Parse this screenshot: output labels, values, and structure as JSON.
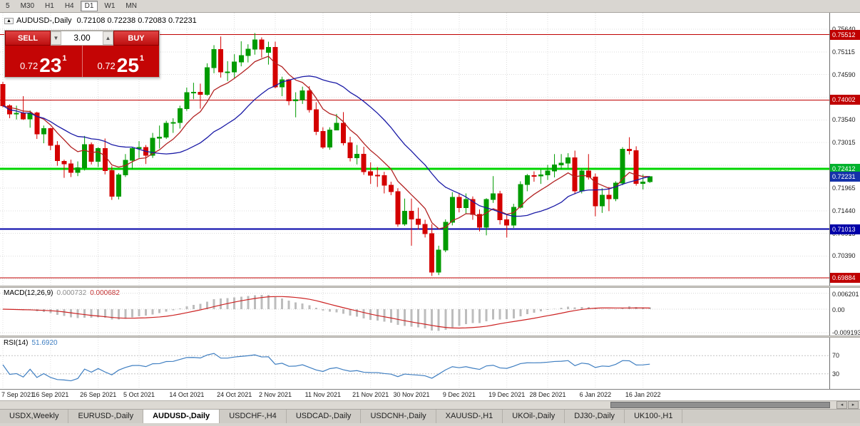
{
  "toolbar": {
    "timeframes": [
      "5",
      "M30",
      "H1",
      "H4",
      "D1",
      "W1",
      "MN"
    ],
    "active_timeframe": "D1"
  },
  "header": {
    "symbol": "AUDUSD-,Daily",
    "ohlc": "0.72108 0.72238 0.72083 0.72231"
  },
  "trade_panel": {
    "sell_label": "SELL",
    "buy_label": "BUY",
    "volume": "3.00",
    "sell_price": {
      "prefix": "0.72",
      "big": "23",
      "sup": "1"
    },
    "buy_price": {
      "prefix": "0.72",
      "big": "25",
      "sup": "1"
    }
  },
  "chart_data": {
    "type": "candlestick",
    "symbol": "AUDUSD-",
    "timeframe": "Daily",
    "up_color": "#009b00",
    "down_color": "#d40000",
    "ma_fast_color": "#b22222",
    "ma_fast_period": 8,
    "ma_slow_color": "#1a1aa6",
    "ma_slow_period": 20,
    "price_axis": {
      "visible_ticks": [
        0.7564,
        0.75115,
        0.7459,
        0.7354,
        0.73015,
        0.71965,
        0.7144,
        0.70915,
        0.7039
      ],
      "grid_only_ticks": [
        0.74065,
        0.7249,
        0.69865
      ]
    },
    "levels": [
      {
        "price": 0.75512,
        "label": "0.75512",
        "color": "#c00000",
        "line": true,
        "width": 1
      },
      {
        "price": 0.74002,
        "label": "0.74002",
        "color": "#c00000",
        "line": true,
        "width": 1
      },
      {
        "price": 0.72412,
        "label": "0.72412",
        "color": "#00b22d",
        "line_color": "#00d500",
        "line": true,
        "width": 3
      },
      {
        "price": 0.72231,
        "label": "0.72231",
        "color": "#1432aa",
        "line": false,
        "width": 0
      },
      {
        "price": 0.71013,
        "label": "0.71013",
        "color": "#0000a8",
        "line": true,
        "width": 2
      },
      {
        "price": 0.69884,
        "label": "0.69884",
        "color": "#c00000",
        "line": true,
        "width": 1
      }
    ],
    "date_ticks": [
      {
        "i": 0,
        "label": "7 Sep 2021"
      },
      {
        "i": 7,
        "label": "16 Sep 2021"
      },
      {
        "i": 14,
        "label": "26 Sep 2021"
      },
      {
        "i": 20,
        "label": "5 Oct 2021"
      },
      {
        "i": 27,
        "label": "14 Oct 2021"
      },
      {
        "i": 34,
        "label": "24 Oct 2021"
      },
      {
        "i": 40,
        "label": "2 Nov 2021"
      },
      {
        "i": 47,
        "label": "11 Nov 2021"
      },
      {
        "i": 54,
        "label": "21 Nov 2021"
      },
      {
        "i": 60,
        "label": "30 Nov 2021"
      },
      {
        "i": 67,
        "label": "9 Dec 2021"
      },
      {
        "i": 74,
        "label": "19 Dec 2021"
      },
      {
        "i": 80,
        "label": "28 Dec 2021"
      },
      {
        "i": 87,
        "label": "6 Jan 2022"
      },
      {
        "i": 94,
        "label": "16 Jan 2022"
      }
    ],
    "candles": [
      [
        0.7436,
        0.7442,
        0.7383,
        0.7387
      ],
      [
        0.7387,
        0.739,
        0.7358,
        0.7368
      ],
      [
        0.7368,
        0.7387,
        0.7355,
        0.7369
      ],
      [
        0.7369,
        0.7409,
        0.7354,
        0.7356
      ],
      [
        0.7356,
        0.7376,
        0.7336,
        0.737
      ],
      [
        0.737,
        0.7373,
        0.731,
        0.7322
      ],
      [
        0.7322,
        0.7341,
        0.73,
        0.7334
      ],
      [
        0.7334,
        0.7336,
        0.7284,
        0.7295
      ],
      [
        0.7295,
        0.7305,
        0.7248,
        0.726
      ],
      [
        0.7258,
        0.7262,
        0.722,
        0.7252
      ],
      [
        0.7252,
        0.7262,
        0.7222,
        0.7233
      ],
      [
        0.7233,
        0.7258,
        0.7224,
        0.7243
      ],
      [
        0.7243,
        0.7317,
        0.7237,
        0.7297
      ],
      [
        0.7297,
        0.7302,
        0.7251,
        0.7258
      ],
      [
        0.7258,
        0.7291,
        0.7245,
        0.7288
      ],
      [
        0.7288,
        0.7311,
        0.7228,
        0.7237
      ],
      [
        0.7237,
        0.7247,
        0.7169,
        0.7177
      ],
      [
        0.7177,
        0.7231,
        0.717,
        0.7227
      ],
      [
        0.7227,
        0.7275,
        0.7222,
        0.7261
      ],
      [
        0.7261,
        0.729,
        0.724,
        0.7288
      ],
      [
        0.7288,
        0.7305,
        0.7266,
        0.729
      ],
      [
        0.729,
        0.7296,
        0.7252,
        0.7272
      ],
      [
        0.7272,
        0.7324,
        0.7266,
        0.7312
      ],
      [
        0.7312,
        0.7341,
        0.7288,
        0.7314
      ],
      [
        0.7314,
        0.7352,
        0.731,
        0.7346
      ],
      [
        0.7346,
        0.7358,
        0.7324,
        0.7348
      ],
      [
        0.7348,
        0.7387,
        0.7334,
        0.738
      ],
      [
        0.738,
        0.7429,
        0.7375,
        0.7417
      ],
      [
        0.7417,
        0.744,
        0.7402,
        0.7418
      ],
      [
        0.7418,
        0.7438,
        0.738,
        0.7413
      ],
      [
        0.7413,
        0.7485,
        0.741,
        0.7475
      ],
      [
        0.7475,
        0.7527,
        0.7462,
        0.7517
      ],
      [
        0.7517,
        0.7547,
        0.7452,
        0.7465
      ],
      [
        0.7465,
        0.749,
        0.7444,
        0.7465
      ],
      [
        0.7465,
        0.7506,
        0.745,
        0.7488
      ],
      [
        0.7488,
        0.7536,
        0.7478,
        0.7503
      ],
      [
        0.7503,
        0.7529,
        0.7487,
        0.7518
      ],
      [
        0.7518,
        0.7555,
        0.7505,
        0.7539
      ],
      [
        0.7539,
        0.7545,
        0.7498,
        0.7518
      ],
      [
        0.751,
        0.7535,
        0.7482,
        0.7522
      ],
      [
        0.7522,
        0.7535,
        0.7427,
        0.743
      ],
      [
        0.743,
        0.7454,
        0.7409,
        0.7447
      ],
      [
        0.7447,
        0.7449,
        0.7388,
        0.7398
      ],
      [
        0.7398,
        0.7418,
        0.736,
        0.7401
      ],
      [
        0.7401,
        0.7431,
        0.7391,
        0.7421
      ],
      [
        0.7421,
        0.7432,
        0.7371,
        0.7378
      ],
      [
        0.7378,
        0.7395,
        0.7319,
        0.7327
      ],
      [
        0.7327,
        0.7337,
        0.7287,
        0.7291
      ],
      [
        0.7291,
        0.7337,
        0.7285,
        0.7331
      ],
      [
        0.7331,
        0.7368,
        0.733,
        0.7346
      ],
      [
        0.7346,
        0.7372,
        0.7295,
        0.7301
      ],
      [
        0.7301,
        0.7315,
        0.7258,
        0.7266
      ],
      [
        0.7266,
        0.7296,
        0.7251,
        0.7275
      ],
      [
        0.7275,
        0.7292,
        0.7227,
        0.7234
      ],
      [
        0.7234,
        0.7256,
        0.7206,
        0.7226
      ],
      [
        0.7226,
        0.7245,
        0.7199,
        0.7225
      ],
      [
        0.7225,
        0.7234,
        0.7184,
        0.7203
      ],
      [
        0.7203,
        0.7211,
        0.718,
        0.7188
      ],
      [
        0.7188,
        0.7196,
        0.7107,
        0.7113
      ],
      [
        0.7113,
        0.7172,
        0.7109,
        0.7143
      ],
      [
        0.7143,
        0.7172,
        0.7063,
        0.7125
      ],
      [
        0.7125,
        0.7151,
        0.71,
        0.7112
      ],
      [
        0.7112,
        0.7123,
        0.7082,
        0.7091
      ],
      [
        0.7091,
        0.7113,
        0.6993,
        0.7002
      ],
      [
        0.7002,
        0.7063,
        0.6995,
        0.7053
      ],
      [
        0.7053,
        0.7124,
        0.7048,
        0.7117
      ],
      [
        0.7117,
        0.7187,
        0.711,
        0.7175
      ],
      [
        0.7175,
        0.7185,
        0.714,
        0.7151
      ],
      [
        0.7151,
        0.7184,
        0.7137,
        0.717
      ],
      [
        0.717,
        0.7177,
        0.7123,
        0.7135
      ],
      [
        0.7135,
        0.7147,
        0.7096,
        0.7106
      ],
      [
        0.7106,
        0.7173,
        0.7087,
        0.717
      ],
      [
        0.717,
        0.7224,
        0.7162,
        0.7183
      ],
      [
        0.7183,
        0.719,
        0.7112,
        0.7123
      ],
      [
        0.7123,
        0.7134,
        0.7082,
        0.7111
      ],
      [
        0.7111,
        0.716,
        0.7104,
        0.7152
      ],
      [
        0.7152,
        0.7212,
        0.7149,
        0.7205
      ],
      [
        0.7205,
        0.7229,
        0.7189,
        0.7225
      ],
      [
        0.7225,
        0.7235,
        0.7211,
        0.7224
      ],
      [
        0.7224,
        0.7239,
        0.7206,
        0.7227
      ],
      [
        0.7227,
        0.725,
        0.7215,
        0.7236
      ],
      [
        0.7236,
        0.7275,
        0.7221,
        0.725
      ],
      [
        0.725,
        0.7275,
        0.7239,
        0.7254
      ],
      [
        0.7254,
        0.7277,
        0.7243,
        0.7266
      ],
      [
        0.7266,
        0.7283,
        0.7182,
        0.719
      ],
      [
        0.719,
        0.7241,
        0.7184,
        0.7236
      ],
      [
        0.7236,
        0.7275,
        0.7216,
        0.7222
      ],
      [
        0.7222,
        0.723,
        0.7131,
        0.7155
      ],
      [
        0.7155,
        0.7196,
        0.7139,
        0.718
      ],
      [
        0.718,
        0.7199,
        0.7143,
        0.7172
      ],
      [
        0.7172,
        0.7212,
        0.7166,
        0.7208
      ],
      [
        0.7208,
        0.7291,
        0.7203,
        0.7286
      ],
      [
        0.7286,
        0.7314,
        0.7274,
        0.7283
      ],
      [
        0.7283,
        0.7293,
        0.7202,
        0.7207
      ],
      [
        0.7207,
        0.7228,
        0.7193,
        0.721
      ],
      [
        0.72108,
        0.72238,
        0.72083,
        0.72231
      ]
    ],
    "macd": {
      "name": "MACD(12,26,9)",
      "main_value": "0.000732",
      "signal_value": "0.000682",
      "fast": 12,
      "slow": 26,
      "signal": 9,
      "axis_labels": [
        "0.006201",
        "0.00",
        "-0.009193"
      ],
      "histogram_color": "#bdbdbd",
      "signal_color": "#cc2222"
    },
    "rsi": {
      "name": "RSI(14)",
      "value": "51.6920",
      "period": 14,
      "levels": [
        70,
        30
      ],
      "axis_labels": [
        "70",
        "30"
      ],
      "line_color": "#3e7ec1"
    }
  },
  "tabs": {
    "items": [
      "USDX,Weekly",
      "EURUSD-,Daily",
      "AUDUSD-,Daily",
      "USDCHF-,H4",
      "USDCAD-,Daily",
      "USDCNH-,Daily",
      "XAUUSD-,H1",
      "UKOil-,Daily",
      "DJ30-,Daily",
      "UK100-,H1"
    ],
    "active": "AUDUSD-,Daily"
  },
  "scroll_arrows": {
    "left": "◂",
    "right": "▸"
  }
}
